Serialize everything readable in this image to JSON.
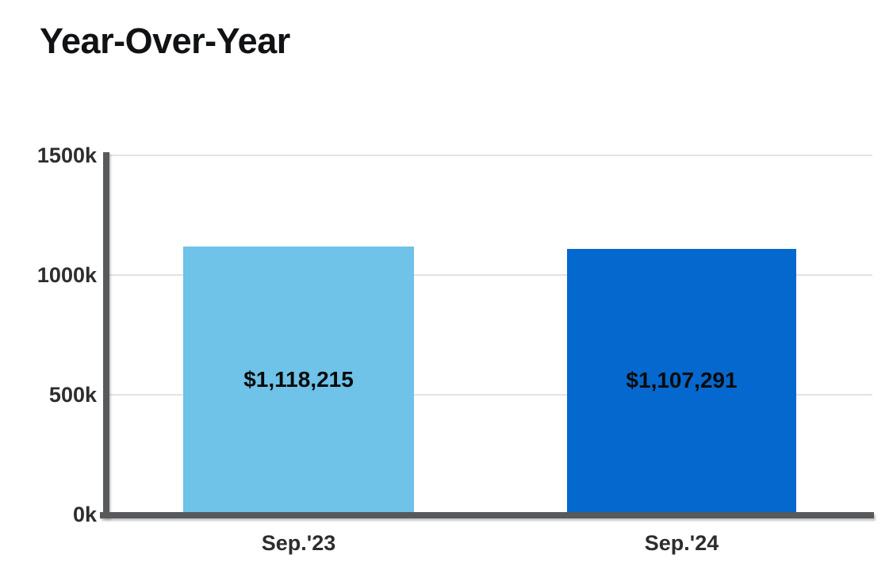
{
  "chart_data": {
    "type": "bar",
    "title": "Year-Over-Year",
    "categories": [
      "Sep.'23",
      "Sep.'24"
    ],
    "values": [
      1118215,
      1107291
    ],
    "bar_labels": [
      "$1,118,215",
      "$1,107,291"
    ],
    "bar_colors": [
      "#6FC2E8",
      "#0568CE"
    ],
    "ylim": [
      0,
      1500000
    ],
    "ytick_values": [
      0,
      500000,
      1000000,
      1500000
    ],
    "ytick_labels": [
      "0k",
      "500k",
      "1000k",
      "1500k"
    ],
    "xlabel": "",
    "ylabel": "",
    "grid": "horizontal-only",
    "legend": "none",
    "axis_color": "#58595B",
    "gridline_color": "#E3E3E3",
    "tick_label_color": "#2E2E30",
    "bar_value_label_color": "#0B0B0B"
  }
}
